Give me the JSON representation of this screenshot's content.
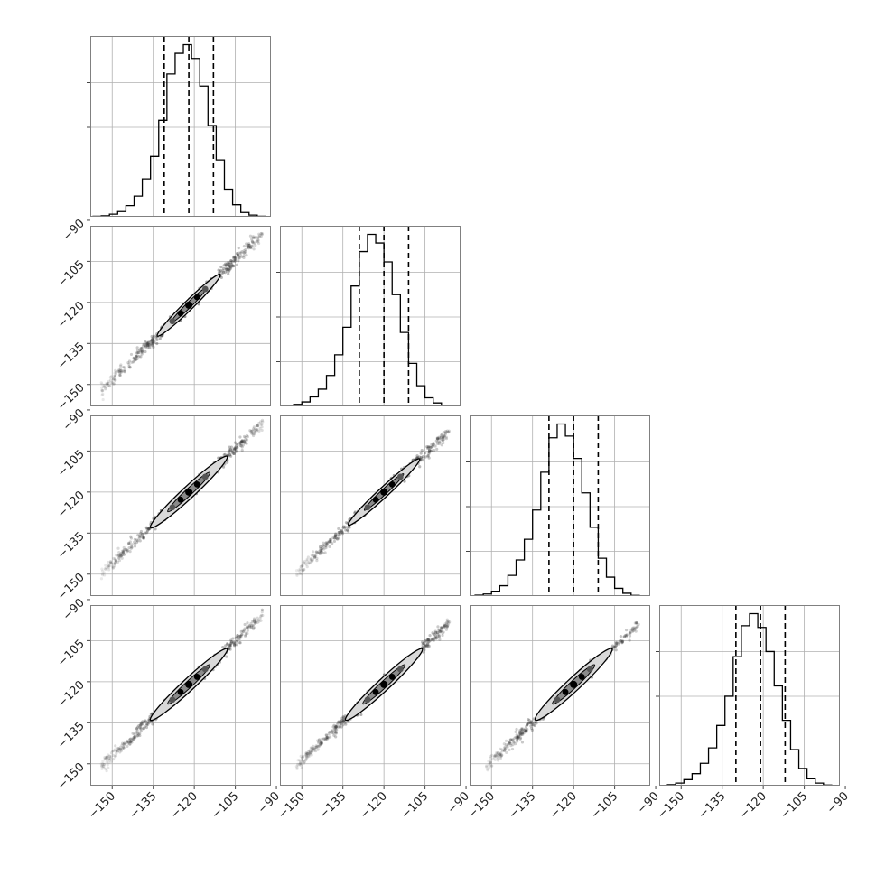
{
  "chart_data": {
    "type": "corner",
    "n_params": 4,
    "grid": true,
    "axis_range": [
      -158,
      -92
    ],
    "ticks": [
      -150,
      -135,
      -120,
      -105,
      -90
    ],
    "tick_labels": [
      "−150",
      "−135",
      "−120",
      "−105",
      "−90"
    ],
    "colors": {
      "hist_line": "#000000",
      "quantile_line": "#000000",
      "grid": "#b0b0b0",
      "frame": "#808080",
      "scatter": "#333333"
    },
    "histograms": [
      {
        "param": 0,
        "bin_edges": [
          -157,
          -154,
          -151,
          -148,
          -145,
          -142,
          -139,
          -136,
          -133,
          -130,
          -127,
          -124,
          -121,
          -118,
          -115,
          -112,
          -109,
          -106,
          -103,
          -100,
          -97,
          -94
        ],
        "counts": [
          0.3,
          0.6,
          1.5,
          3.0,
          6.5,
          12,
          22,
          35,
          56,
          83,
          95,
          100,
          92,
          76,
          53,
          33,
          16,
          7,
          2.5,
          1.0,
          0.3
        ],
        "quantiles": [
          -131,
          -122,
          -113
        ]
      },
      {
        "param": 1,
        "bin_edges": [
          -156,
          -153,
          -150,
          -147,
          -144,
          -141,
          -138,
          -135,
          -132,
          -129,
          -126,
          -123,
          -120,
          -117,
          -114,
          -111,
          -108,
          -105,
          -102,
          -99,
          -96
        ],
        "counts": [
          0.5,
          1.2,
          2.6,
          5.5,
          10,
          18,
          30,
          46,
          70,
          90,
          100,
          95,
          84,
          65,
          43,
          25,
          12,
          5,
          2,
          0.6
        ],
        "quantiles": [
          -129,
          -120,
          -111
        ]
      },
      {
        "param": 2,
        "bin_edges": [
          -156,
          -153,
          -150,
          -147,
          -144,
          -141,
          -138,
          -135,
          -132,
          -129,
          -126,
          -123,
          -120,
          -117,
          -114,
          -111,
          -108,
          -105,
          -102,
          -99,
          -96
        ],
        "counts": [
          0.5,
          1.2,
          2.8,
          6,
          12,
          21,
          33,
          50,
          72,
          92,
          100,
          93,
          80,
          60,
          40,
          22,
          11,
          4.5,
          1.6,
          0.4
        ],
        "quantiles": [
          -129,
          -120,
          -111
        ]
      },
      {
        "param": 3,
        "bin_edges": [
          -155,
          -152,
          -149,
          -146,
          -143,
          -140,
          -137,
          -134,
          -131,
          -128,
          -125,
          -122,
          -119,
          -116,
          -113,
          -110,
          -107,
          -104,
          -101,
          -98,
          -95
        ],
        "counts": [
          0.6,
          1.5,
          3.5,
          7,
          13,
          22,
          35,
          52,
          75,
          93,
          100,
          92,
          78,
          58,
          38,
          21,
          10,
          4,
          1.5,
          0.4
        ],
        "quantiles": [
          -130,
          -121,
          -112
        ]
      }
    ],
    "pairs": [
      {
        "x_param": 0,
        "y_param": 1,
        "x_range": [
          -154,
          -95
        ],
        "slope": 0.98,
        "center": [
          -122,
          -121
        ],
        "contour_half_length": 11.5,
        "contour_half_width": 1.7
      },
      {
        "x_param": 0,
        "y_param": 2,
        "x_range": [
          -154,
          -95
        ],
        "slope": 0.93,
        "center": [
          -122,
          -120
        ],
        "contour_half_length": 14,
        "contour_half_width": 2.2
      },
      {
        "x_param": 1,
        "y_param": 2,
        "x_range": [
          -152,
          -96
        ],
        "slope": 0.93,
        "center": [
          -120,
          -120
        ],
        "contour_half_length": 13,
        "contour_half_width": 1.8
      },
      {
        "x_param": 0,
        "y_param": 3,
        "x_range": [
          -154,
          -95
        ],
        "slope": 0.93,
        "center": [
          -122,
          -121
        ],
        "contour_half_length": 14,
        "contour_half_width": 2.2
      },
      {
        "x_param": 1,
        "y_param": 3,
        "x_range": [
          -152,
          -96
        ],
        "slope": 0.93,
        "center": [
          -120,
          -121
        ],
        "contour_half_length": 14,
        "contour_half_width": 2.2
      },
      {
        "x_param": 2,
        "y_param": 3,
        "x_range": [
          -152,
          -96
        ],
        "slope": 0.93,
        "center": [
          -120,
          -121
        ],
        "contour_half_length": 14,
        "contour_half_width": 2.4
      }
    ]
  }
}
